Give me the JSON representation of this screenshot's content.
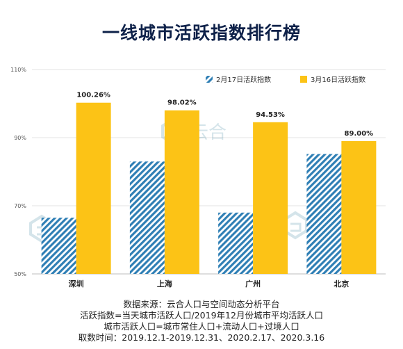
{
  "title": "一线城市活跃指数排行榜",
  "watermark_text": "云合",
  "chart_data": {
    "type": "bar",
    "categories": [
      "深圳",
      "上海",
      "广州",
      "北京"
    ],
    "series": [
      {
        "name": "2月17日活跃指数",
        "values": [
          66.5,
          83.0,
          68.0,
          85.2
        ],
        "pattern": "diagonal-hatch",
        "color": "#2f7fb5"
      },
      {
        "name": "3月16日活跃指数",
        "values": [
          100.26,
          98.02,
          94.53,
          89.0
        ],
        "pattern": "solid",
        "color": "#fcc316"
      }
    ],
    "data_labels": [
      "100.26%",
      "98.02%",
      "94.53%",
      "89.00%"
    ],
    "ylim": [
      50,
      110
    ],
    "yticks": [
      {
        "value": 50,
        "label": "50%"
      },
      {
        "value": 70,
        "label": "70%"
      },
      {
        "value": 90,
        "label": "90%"
      },
      {
        "value": 110,
        "label": "110%"
      }
    ],
    "legend_position": "top-right",
    "grid": true
  },
  "footer": [
    "数据来源：云合人口与空间动态分析平台",
    "活跃指数=当天城市活跃人口/2019年12月份城市平均活跃人口",
    "城市活跃人口=城市常住人口+流动人口+过境人口",
    "取数时间：2019.12.1-2019.12.31、2020.2.17、2020.3.16"
  ]
}
